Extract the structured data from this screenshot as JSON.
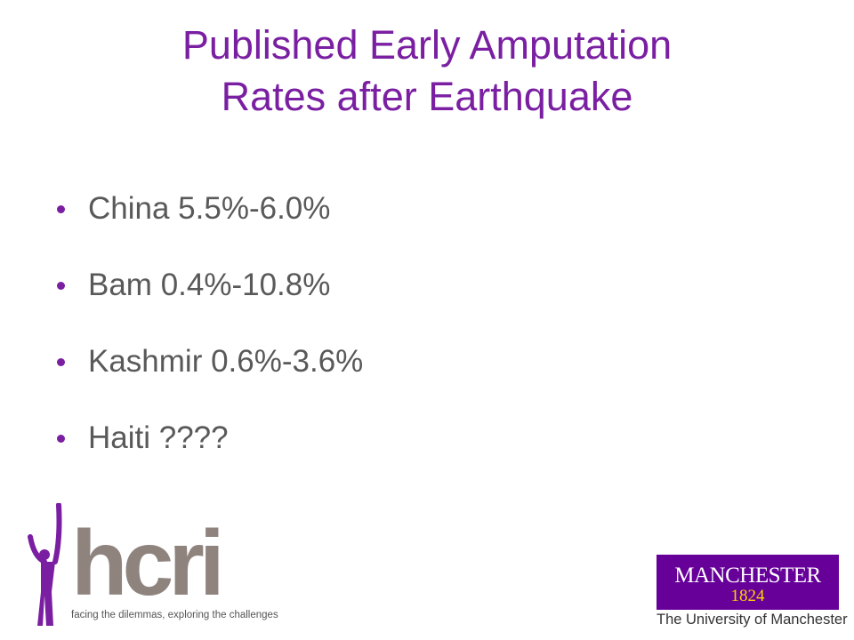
{
  "slide": {
    "title_line1": "Published Early Amputation",
    "title_line2": "Rates after Earthquake",
    "bullets": [
      "China 5.5%-6.0%",
      "Bam 0.4%-10.8%",
      "Kashmir 0.6%-3.6%",
      "Haiti ????"
    ]
  },
  "logos": {
    "hcri_wordmark": "hcri",
    "hcri_tagline": "facing the dilemmas, exploring the challenges",
    "manchester_name": "MANCHESTER",
    "manchester_year": "1824",
    "manchester_university": "The University of Manchester"
  },
  "colors": {
    "title": "#7a1fa2",
    "bullet_text": "#595959",
    "hcri_purple": "#7a1fa2",
    "hcri_grey": "#8f837e",
    "manchester_purple": "#660099",
    "manchester_gold": "#ffd200"
  }
}
